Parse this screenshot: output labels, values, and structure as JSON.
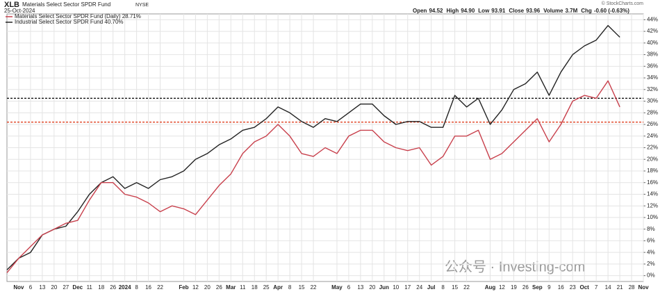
{
  "header": {
    "symbol": "XLB",
    "name": "Materials Select Sector SPDR Fund",
    "exchange": "NYSE",
    "date": "25-Oct-2024",
    "quote": [
      {
        "label": "Open",
        "value": "94.52"
      },
      {
        "label": "High",
        "value": "94.90"
      },
      {
        "label": "Low",
        "value": "93.91"
      },
      {
        "label": "Close",
        "value": "93.96"
      },
      {
        "label": "Volume",
        "value": "3.7M"
      },
      {
        "label": "Chg",
        "value": "-0.60 (-0.63%)"
      }
    ],
    "credit": "© StockCharts.com",
    "watermark": "公众号 · Investing-com"
  },
  "chart_data": {
    "type": "line",
    "categories": [
      null,
      "Nov",
      "6",
      "13",
      "20",
      "27",
      "Dec",
      "11",
      "18",
      "26",
      "2024",
      "8",
      "16",
      "22",
      null,
      "Feb",
      "12",
      "20",
      "26",
      "Mar",
      "11",
      "18",
      "25",
      "Apr",
      "8",
      "15",
      "22",
      null,
      "May",
      "6",
      "13",
      "20",
      "Jun",
      "10",
      "17",
      "24",
      "Jul",
      "8",
      "15",
      "22",
      null,
      "Aug",
      "12",
      "19",
      "26",
      "Sep",
      "9",
      "16",
      "23",
      "Oct",
      "7",
      "14",
      "21",
      "28",
      "Nov"
    ],
    "series": [
      {
        "name": "Materials Select Sector SPDR Fund (Daily) 28.71%",
        "color": "#c8404c",
        "values": [
          0.5,
          3,
          5,
          7,
          8,
          9,
          9.5,
          13,
          16,
          16,
          14,
          13.5,
          12.5,
          11,
          12,
          11.5,
          10.5,
          13,
          15.5,
          17.5,
          21,
          23,
          24,
          26,
          24,
          21,
          20.5,
          22,
          21,
          24,
          25,
          25,
          23,
          22,
          21.5,
          22,
          19,
          20.5,
          24,
          24,
          25,
          20,
          21,
          23,
          25,
          27,
          23,
          26,
          30,
          31,
          30.5,
          33.5,
          29,
          null,
          null
        ]
      },
      {
        "name": "Industrial Select Sector SPDR Fund 40.70%",
        "color": "#222222",
        "values": [
          1,
          3,
          4,
          7,
          8,
          8.5,
          11,
          14,
          16,
          17,
          15,
          16,
          15,
          16.5,
          17,
          18,
          20,
          21,
          22.5,
          23.5,
          25,
          25.5,
          27,
          29,
          28,
          26.5,
          25.5,
          27,
          26.5,
          28,
          29.5,
          29.5,
          27.5,
          26,
          26.5,
          26.5,
          25.5,
          25.5,
          31,
          29,
          30.5,
          26,
          28.5,
          32,
          33,
          35,
          31,
          35,
          38,
          39.5,
          40.5,
          43,
          41,
          null,
          null
        ]
      }
    ],
    "hlines": [
      {
        "value": 30.5,
        "color": "#000000"
      },
      {
        "value": 26.4,
        "color": "#e04020"
      }
    ],
    "ylim": [
      -1,
      45
    ],
    "yticks": [
      {
        "value": 0,
        "label": "0%"
      },
      {
        "value": 2,
        "label": "2%"
      },
      {
        "value": 4,
        "label": "4%"
      },
      {
        "value": 6,
        "label": "6%"
      },
      {
        "value": 8,
        "label": "8%"
      },
      {
        "value": 10,
        "label": "10%"
      },
      {
        "value": 12,
        "label": "12%"
      },
      {
        "value": 14,
        "label": "14%"
      },
      {
        "value": 16,
        "label": "16%"
      },
      {
        "value": 18,
        "label": "18%"
      },
      {
        "value": 20,
        "label": "20%"
      },
      {
        "value": 22,
        "label": "22%"
      },
      {
        "value": 24,
        "label": "24%"
      },
      {
        "value": 26,
        "label": "26%"
      },
      {
        "value": 28,
        "label": "28%"
      },
      {
        "value": 30,
        "label": "30%"
      },
      {
        "value": 32,
        "label": "32%"
      },
      {
        "value": 34,
        "label": "34%"
      },
      {
        "value": 36,
        "label": "36%"
      },
      {
        "value": 38,
        "label": "38%"
      },
      {
        "value": 40,
        "label": "40%"
      },
      {
        "value": 42,
        "label": "42%"
      },
      {
        "value": 44,
        "label": "44%"
      }
    ],
    "grid": true
  }
}
